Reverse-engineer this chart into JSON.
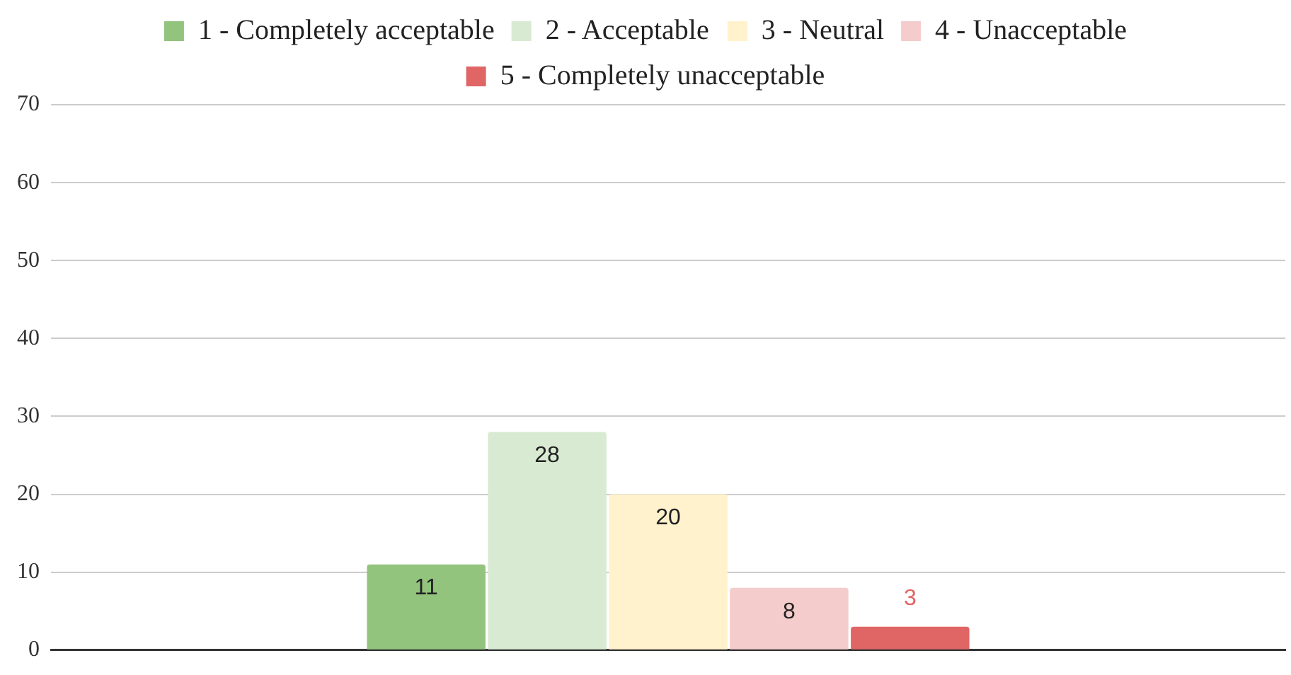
{
  "chart_data": {
    "type": "bar",
    "categories": [
      null
    ],
    "series": [
      {
        "name": "1 - Completely acceptable",
        "color": "#93c47d",
        "values": [
          11
        ]
      },
      {
        "name": "2 - Acceptable",
        "color": "#d9ead3",
        "values": [
          28
        ]
      },
      {
        "name": "3 - Neutral",
        "color": "#fff2cc",
        "values": [
          20
        ]
      },
      {
        "name": "4 - Unacceptable",
        "color": "#f4cccc",
        "values": [
          8
        ]
      },
      {
        "name": "5 - Completely unacceptable",
        "color": "#e06666",
        "values": [
          3
        ]
      }
    ],
    "ylim": [
      0,
      70
    ],
    "yticks": [
      0,
      10,
      20,
      30,
      40,
      50,
      60,
      70
    ],
    "grid": "y",
    "legend": "top",
    "data_labels": true
  }
}
